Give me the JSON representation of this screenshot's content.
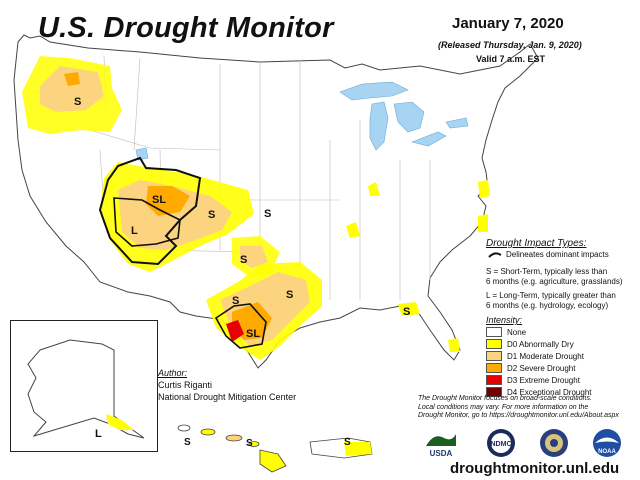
{
  "header": {
    "title": "U.S. Drought Monitor",
    "date": "January 7, 2020",
    "released": "(Released Thursday, Jan. 9, 2020)",
    "valid": "Valid 7 a.m. EST"
  },
  "impacts": {
    "title": "Drought Impact Types:",
    "delineates": "Delineates dominant impacts",
    "s_line1": "S = Short-Term, typically less than",
    "s_line2": "6 months (e.g. agriculture, grasslands)",
    "l_line1": "L = Long-Term, typically greater than",
    "l_line2": "6 months (e.g. hydrology, ecology)"
  },
  "intensity": {
    "title": "Intensity:",
    "levels": [
      {
        "label": "None",
        "color": "#ffffff"
      },
      {
        "label": "D0 Abnormally Dry",
        "color": "#ffff00"
      },
      {
        "label": "D1 Moderate Drought",
        "color": "#fcd37f"
      },
      {
        "label": "D2 Severe Drought",
        "color": "#ffaa00"
      },
      {
        "label": "D3 Extreme Drought",
        "color": "#e60000"
      },
      {
        "label": "D4 Exceptional Drought",
        "color": "#730000"
      }
    ]
  },
  "author": {
    "title": "Author:",
    "name": "Curtis Riganti",
    "org": "National Drought Mitigation Center"
  },
  "note": {
    "line1": "The Drought Monitor focuses on broad-scale conditions.",
    "line2": "Local conditions may vary. For more information on the",
    "line3": "Drought Monitor, go to https://droughtmonitor.unl.edu/About.aspx"
  },
  "map_labels": {
    "s": "S",
    "sl": "SL",
    "l": "L"
  },
  "logos": {
    "usda": "USDA",
    "ndmc": "NDMC",
    "noaa": "NOAA"
  },
  "website": "droughtmonitor.unl.edu",
  "colors": {
    "water": "#a7d4f2",
    "d0": "#ffff00",
    "d1": "#fcd37f",
    "d2": "#ffaa00",
    "d3": "#e60000",
    "d4": "#730000"
  }
}
